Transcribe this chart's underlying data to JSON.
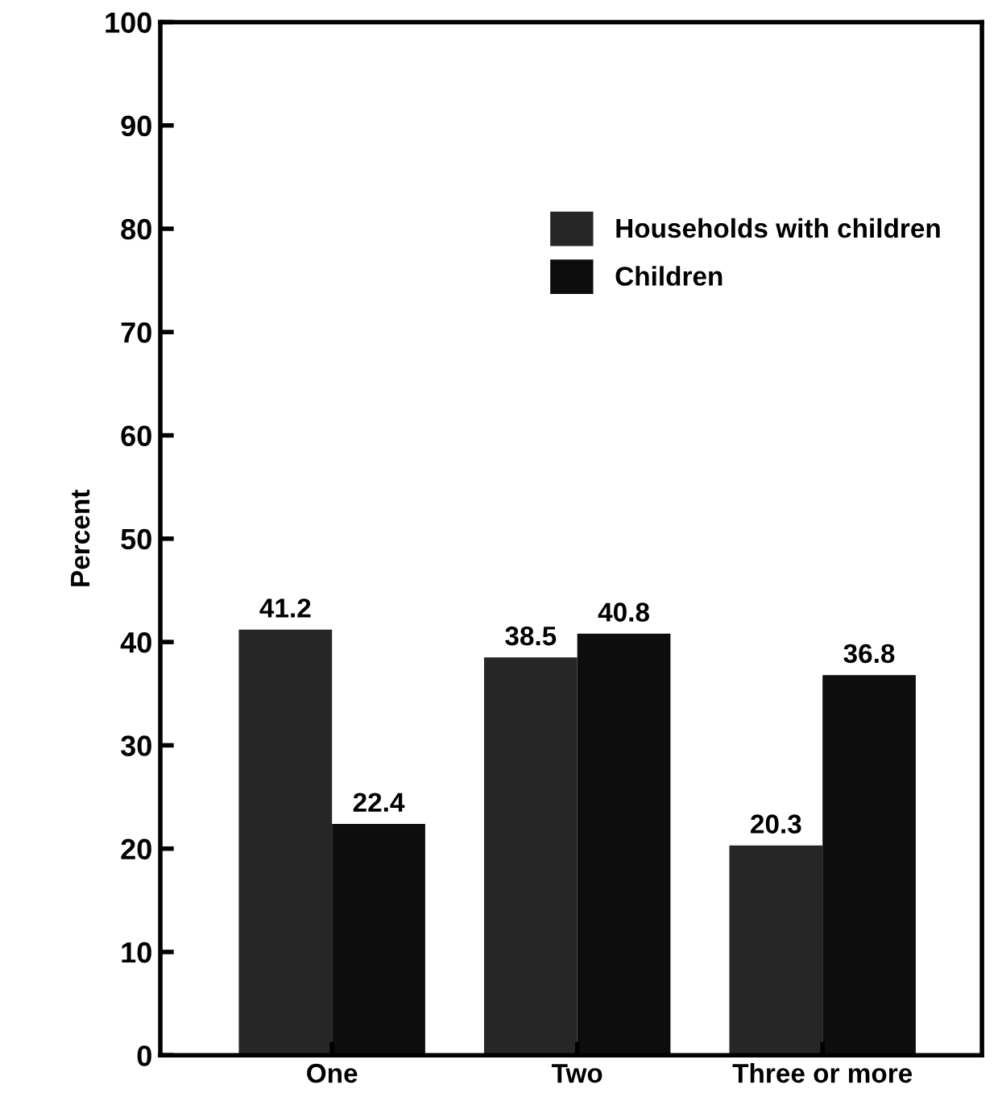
{
  "chart_data": {
    "type": "bar",
    "ylabel": "Percent",
    "categories": [
      "One",
      "Two",
      "Three or more"
    ],
    "series": [
      {
        "name": "Households with children",
        "color": "#262626",
        "values": [
          41.2,
          38.5,
          20.3
        ]
      },
      {
        "name": "Children",
        "color": "#0d0d0d",
        "values": [
          22.4,
          40.8,
          36.8
        ]
      }
    ],
    "ylim": [
      0,
      100
    ],
    "yticks": [
      0,
      10,
      20,
      30,
      40,
      50,
      60,
      70,
      80,
      90,
      100
    ],
    "data_labels": true,
    "grid": false,
    "legend": "top right"
  }
}
